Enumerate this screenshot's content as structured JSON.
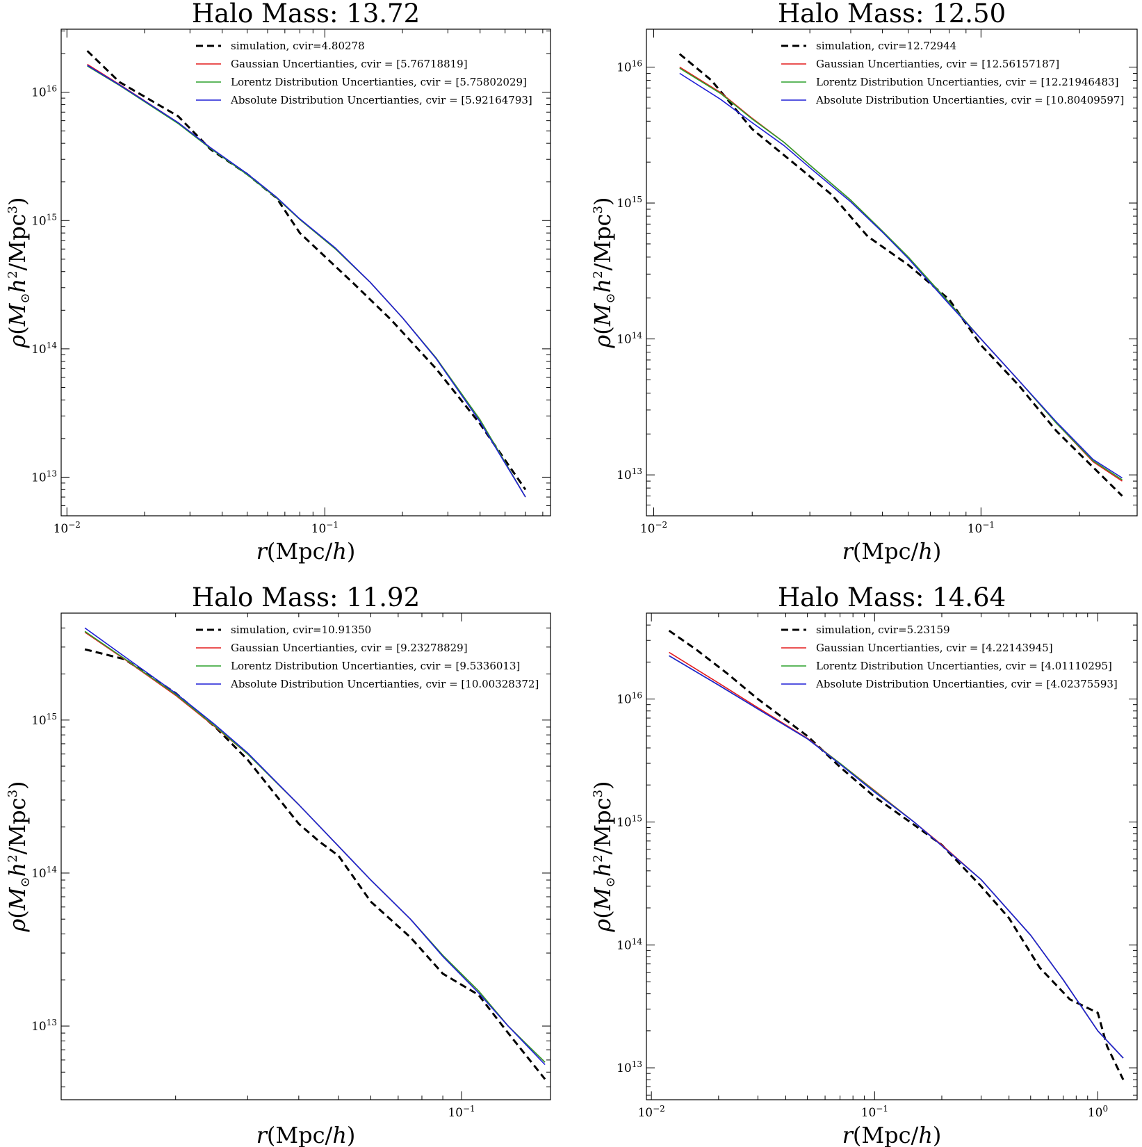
{
  "chart_data": [
    {
      "type": "line",
      "title": "Halo Mass: 13.72",
      "xlabel": "r(Mpc/h)",
      "ylabel": "ρ(M⊙h²/Mpc³)",
      "x_scale": "log",
      "y_scale": "log",
      "xlim": [
        0.0095,
        0.75
      ],
      "ylim": [
        5000000000000.0,
        3.1e+16
      ],
      "x_ticks": [
        {
          "value": 0.01,
          "base": "10",
          "exp": "−2"
        },
        {
          "value": 0.1,
          "base": "10",
          "exp": "−1"
        }
      ],
      "y_ticks": [
        {
          "value": 10000000000000.0,
          "base": "10",
          "exp": "13"
        },
        {
          "value": 100000000000000.0,
          "base": "10",
          "exp": "14"
        },
        {
          "value": 1000000000000000.0,
          "base": "10",
          "exp": "15"
        },
        {
          "value": 1e+16,
          "base": "10",
          "exp": "16"
        }
      ],
      "legend": {
        "position": "top-right"
      },
      "series": [
        {
          "name": "simulation, cvir=4.80278",
          "color": "#000000",
          "dashed": true,
          "x": [
            0.012,
            0.016,
            0.027,
            0.036,
            0.05,
            0.065,
            0.08,
            0.13,
            0.18,
            0.27,
            0.4,
            0.6
          ],
          "y": [
            2.1e+16,
            1.2e+16,
            6500000000000000.0,
            3600000000000000.0,
            2300000000000000.0,
            1500000000000000.0,
            800000000000000.0,
            320000000000000.0,
            170000000000000.0,
            70000000000000.0,
            26000000000000.0,
            8000000000000.0
          ]
        },
        {
          "name": "Gaussian Uncertianties, cvir = [5.76718819]",
          "color": "#e41a1c",
          "dashed": false,
          "x": [
            0.012,
            0.016,
            0.027,
            0.036,
            0.05,
            0.065,
            0.08,
            0.11,
            0.15,
            0.2,
            0.27,
            0.4,
            0.6
          ],
          "y": [
            1.65e+16,
            1.15e+16,
            5800000000000000.0,
            3700000000000000.0,
            2300000000000000.0,
            1500000000000000.0,
            1020000000000000.0,
            600000000000000.0,
            330000000000000.0,
            175000000000000.0,
            85000000000000.0,
            28000000000000.0,
            7000000000000.0
          ]
        },
        {
          "name": "Lorentz Distribution Uncertianties, cvir = [5.75802029]",
          "color": "#2ca02c",
          "dashed": false,
          "x": [
            0.012,
            0.016,
            0.027,
            0.036,
            0.05,
            0.065,
            0.08,
            0.11,
            0.15,
            0.2,
            0.27,
            0.4,
            0.6
          ],
          "y": [
            1.6e+16,
            1.13e+16,
            5700000000000000.0,
            3650000000000000.0,
            2280000000000000.0,
            1500000000000000.0,
            1020000000000000.0,
            600000000000000.0,
            330000000000000.0,
            175000000000000.0,
            85000000000000.0,
            28000000000000.0,
            7000000000000.0
          ]
        },
        {
          "name": "Absolute Distribution Uncertianties, cvir = [5.92164793]",
          "color": "#1f1fd6",
          "dashed": false,
          "x": [
            0.012,
            0.016,
            0.027,
            0.036,
            0.05,
            0.065,
            0.08,
            0.11,
            0.15,
            0.2,
            0.27,
            0.4,
            0.6
          ],
          "y": [
            1.62e+16,
            1.14e+16,
            5800000000000000.0,
            3700000000000000.0,
            2320000000000000.0,
            1520000000000000.0,
            1030000000000000.0,
            610000000000000.0,
            330000000000000.0,
            175000000000000.0,
            84000000000000.0,
            27000000000000.0,
            7000000000000.0
          ]
        }
      ]
    },
    {
      "type": "line",
      "title": "Halo Mass: 12.50",
      "xlabel": "r(Mpc/h)",
      "ylabel": "ρ(M⊙h²/Mpc³)",
      "x_scale": "log",
      "y_scale": "log",
      "xlim": [
        0.0095,
        0.3
      ],
      "ylim": [
        5000000000000.0,
        1.9e+16
      ],
      "x_ticks": [
        {
          "value": 0.01,
          "base": "10",
          "exp": "−2"
        },
        {
          "value": 0.1,
          "base": "10",
          "exp": "−1"
        }
      ],
      "y_ticks": [
        {
          "value": 10000000000000.0,
          "base": "10",
          "exp": "13"
        },
        {
          "value": 100000000000000.0,
          "base": "10",
          "exp": "14"
        },
        {
          "value": 1000000000000000.0,
          "base": "10",
          "exp": "15"
        },
        {
          "value": 1e+16,
          "base": "10",
          "exp": "16"
        }
      ],
      "legend": {
        "position": "top-right"
      },
      "series": [
        {
          "name": "simulation, cvir=12.72944",
          "color": "#000000",
          "dashed": true,
          "x": [
            0.012,
            0.015,
            0.02,
            0.028,
            0.035,
            0.045,
            0.06,
            0.08,
            0.1,
            0.13,
            0.17,
            0.27
          ],
          "y": [
            1.25e+16,
            8000000000000000.0,
            3500000000000000.0,
            1800000000000000.0,
            1150000000000000.0,
            570000000000000.0,
            350000000000000.0,
            195000000000000.0,
            90000000000000.0,
            46000000000000.0,
            21000000000000.0,
            7000000000000.0
          ]
        },
        {
          "name": "Gaussian Uncertianties, cvir = [12.56157187]",
          "color": "#e41a1c",
          "dashed": false,
          "x": [
            0.012,
            0.016,
            0.02,
            0.025,
            0.03,
            0.04,
            0.05,
            0.06,
            0.08,
            0.1,
            0.13,
            0.17,
            0.22,
            0.27
          ],
          "y": [
            1e+16,
            6500000000000000.0,
            4200000000000000.0,
            2800000000000000.0,
            1900000000000000.0,
            1050000000000000.0,
            620000000000000.0,
            400000000000000.0,
            185000000000000.0,
            100000000000000.0,
            50000000000000.0,
            24000000000000.0,
            12500000000000.0,
            9000000000000.0
          ]
        },
        {
          "name": "Lorentz Distribution Uncertianties, cvir = [12.21946483]",
          "color": "#2ca02c",
          "dashed": false,
          "x": [
            0.012,
            0.016,
            0.02,
            0.025,
            0.03,
            0.04,
            0.05,
            0.06,
            0.08,
            0.1,
            0.13,
            0.17,
            0.22,
            0.27
          ],
          "y": [
            9800000000000000.0,
            6400000000000000.0,
            4150000000000000.0,
            2800000000000000.0,
            1900000000000000.0,
            1050000000000000.0,
            620000000000000.0,
            400000000000000.0,
            185000000000000.0,
            100000000000000.0,
            50000000000000.0,
            24000000000000.0,
            12700000000000.0,
            9200000000000.0
          ]
        },
        {
          "name": "Absolute Distribution Uncertianties, cvir = [10.80409597]",
          "color": "#1f1fd6",
          "dashed": false,
          "x": [
            0.012,
            0.016,
            0.02,
            0.025,
            0.03,
            0.04,
            0.05,
            0.06,
            0.08,
            0.1,
            0.13,
            0.17,
            0.22,
            0.27
          ],
          "y": [
            9000000000000000.0,
            5800000000000000.0,
            3900000000000000.0,
            2650000000000000.0,
            1820000000000000.0,
            1020000000000000.0,
            610000000000000.0,
            390000000000000.0,
            180000000000000.0,
            100000000000000.0,
            50000000000000.0,
            24500000000000.0,
            13000000000000.0,
            9500000000000.0
          ]
        }
      ]
    },
    {
      "type": "line",
      "title": "Halo Mass: 11.92",
      "xlabel": "r(Mpc/h)",
      "ylabel": "ρ(M⊙h²/Mpc³)",
      "x_scale": "log",
      "y_scale": "log",
      "xlim": [
        0.0105,
        0.165
      ],
      "ylim": [
        3300000000000.0,
        5000000000000000.0
      ],
      "x_ticks": [
        {
          "value": 0.1,
          "base": "10",
          "exp": "−1"
        }
      ],
      "y_ticks": [
        {
          "value": 10000000000000.0,
          "base": "10",
          "exp": "13"
        },
        {
          "value": 100000000000000.0,
          "base": "10",
          "exp": "14"
        },
        {
          "value": 1000000000000000.0,
          "base": "10",
          "exp": "15"
        }
      ],
      "legend": {
        "position": "top-right"
      },
      "series": [
        {
          "name": "simulation, cvir=10.91350",
          "color": "#000000",
          "dashed": true,
          "x": [
            0.012,
            0.015,
            0.02,
            0.025,
            0.03,
            0.04,
            0.045,
            0.05,
            0.06,
            0.075,
            0.09,
            0.11,
            0.13,
            0.16
          ],
          "y": [
            2900000000000000.0,
            2500000000000000.0,
            1500000000000000.0,
            900000000000000.0,
            550000000000000.0,
            210000000000000.0,
            160000000000000.0,
            130000000000000.0,
            65000000000000.0,
            38000000000000.0,
            22000000000000.0,
            16000000000000.0,
            9000000000000.0,
            4500000000000.0
          ]
        },
        {
          "name": "Gaussian Uncertianties, cvir = [9.23278829]",
          "color": "#e41a1c",
          "dashed": false,
          "x": [
            0.012,
            0.015,
            0.02,
            0.025,
            0.03,
            0.04,
            0.05,
            0.06,
            0.075,
            0.09,
            0.11,
            0.13,
            0.16
          ],
          "y": [
            3750000000000000.0,
            2500000000000000.0,
            1450000000000000.0,
            900000000000000.0,
            600000000000000.0,
            280000000000000.0,
            150000000000000.0,
            90000000000000.0,
            50000000000000.0,
            29000000000000.0,
            17000000000000.0,
            10000000000000.0,
            5800000000000.0
          ]
        },
        {
          "name": "Lorentz Distribution Uncertianties, cvir = [9.5336013]",
          "color": "#2ca02c",
          "dashed": false,
          "x": [
            0.012,
            0.015,
            0.02,
            0.025,
            0.03,
            0.04,
            0.05,
            0.06,
            0.075,
            0.09,
            0.11,
            0.13,
            0.16
          ],
          "y": [
            3800000000000000.0,
            2520000000000000.0,
            1470000000000000.0,
            910000000000000.0,
            600000000000000.0,
            280000000000000.0,
            150000000000000.0,
            90000000000000.0,
            50000000000000.0,
            29000000000000.0,
            17000000000000.0,
            10000000000000.0,
            5800000000000.0
          ]
        },
        {
          "name": "Absolute Distribution Uncertianties, cvir = [10.00328372]",
          "color": "#1f1fd6",
          "dashed": false,
          "x": [
            0.012,
            0.015,
            0.02,
            0.025,
            0.03,
            0.04,
            0.05,
            0.06,
            0.075,
            0.09,
            0.11,
            0.13,
            0.16
          ],
          "y": [
            4000000000000000.0,
            2600000000000000.0,
            1500000000000000.0,
            930000000000000.0,
            610000000000000.0,
            280000000000000.0,
            150000000000000.0,
            90000000000000.0,
            50000000000000.0,
            28500000000000.0,
            16500000000000.0,
            10000000000000.0,
            5600000000000.0
          ]
        }
      ]
    },
    {
      "type": "line",
      "title": "Halo Mass: 14.64",
      "xlabel": "r(Mpc/h)",
      "ylabel": "ρ(M⊙h²/Mpc³)",
      "x_scale": "log",
      "y_scale": "log",
      "xlim": [
        0.0095,
        1.5
      ],
      "ylim": [
        5500000000000.0,
        5e+16
      ],
      "x_ticks": [
        {
          "value": 0.01,
          "base": "10",
          "exp": "−2"
        },
        {
          "value": 0.1,
          "base": "10",
          "exp": "−1"
        },
        {
          "value": 1.0,
          "base": "10",
          "exp": "0"
        }
      ],
      "y_ticks": [
        {
          "value": 10000000000000.0,
          "base": "10",
          "exp": "13"
        },
        {
          "value": 100000000000000.0,
          "base": "10",
          "exp": "14"
        },
        {
          "value": 1000000000000000.0,
          "base": "10",
          "exp": "15"
        },
        {
          "value": 1e+16,
          "base": "10",
          "exp": "16"
        }
      ],
      "legend": {
        "position": "top-right"
      },
      "series": [
        {
          "name": "simulation, cvir=5.23159",
          "color": "#000000",
          "dashed": true,
          "x": [
            0.012,
            0.016,
            0.022,
            0.03,
            0.05,
            0.07,
            0.1,
            0.15,
            0.2,
            0.3,
            0.4,
            0.55,
            0.75,
            1.0,
            1.1,
            1.3
          ],
          "y": [
            3.6e+16,
            2.5e+16,
            1.6e+16,
            1e+16,
            5000000000000000.0,
            2800000000000000.0,
            1600000000000000.0,
            950000000000000.0,
            650000000000000.0,
            300000000000000.0,
            165000000000000.0,
            65000000000000.0,
            36000000000000.0,
            28000000000000.0,
            15000000000000.0,
            8000000000000.0
          ]
        },
        {
          "name": "Gaussian Uncertianties, cvir = [4.22143945]",
          "color": "#e41a1c",
          "dashed": false,
          "x": [
            0.012,
            0.02,
            0.03,
            0.05,
            0.07,
            0.1,
            0.15,
            0.2,
            0.3,
            0.5,
            0.7,
            1.0,
            1.3
          ],
          "y": [
            2.4e+16,
            1.35e+16,
            8500000000000000.0,
            4800000000000000.0,
            3000000000000000.0,
            1800000000000000.0,
            1000000000000000.0,
            650000000000000.0,
            340000000000000.0,
            120000000000000.0,
            52000000000000.0,
            20000000000000.0,
            12000000000000.0
          ]
        },
        {
          "name": "Lorentz Distribution Uncertianties, cvir = [4.01110295]",
          "color": "#2ca02c",
          "dashed": false,
          "x": [
            0.012,
            0.02,
            0.03,
            0.05,
            0.07,
            0.1,
            0.15,
            0.2,
            0.3,
            0.5,
            0.7,
            1.0,
            1.3
          ],
          "y": [
            2.25e+16,
            1.3e+16,
            8300000000000000.0,
            4750000000000000.0,
            3000000000000000.0,
            1780000000000000.0,
            1000000000000000.0,
            640000000000000.0,
            340000000000000.0,
            120000000000000.0,
            52000000000000.0,
            20000000000000.0,
            12000000000000.0
          ]
        },
        {
          "name": "Absolute Distribution Uncertianties, cvir = [4.02375593]",
          "color": "#1f1fd6",
          "dashed": false,
          "x": [
            0.012,
            0.02,
            0.03,
            0.05,
            0.07,
            0.1,
            0.15,
            0.2,
            0.3,
            0.5,
            0.7,
            1.0,
            1.3
          ],
          "y": [
            2.25e+16,
            1.3e+16,
            8300000000000000.0,
            4750000000000000.0,
            2950000000000000.0,
            1750000000000000.0,
            1000000000000000.0,
            640000000000000.0,
            340000000000000.0,
            120000000000000.0,
            52000000000000.0,
            20000000000000.0,
            12000000000000.0
          ]
        }
      ]
    }
  ]
}
